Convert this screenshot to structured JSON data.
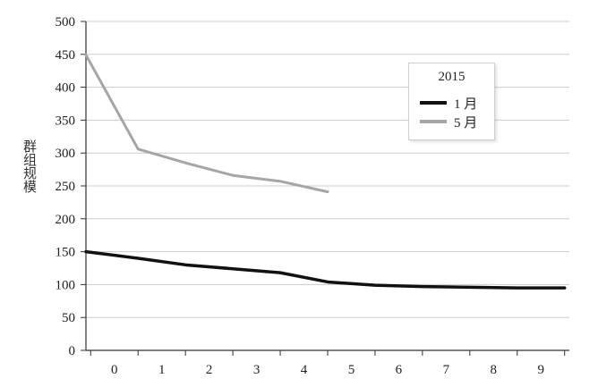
{
  "chart_data": {
    "type": "line",
    "ylabel": "群组规模",
    "xlabel": "",
    "ylim": [
      0,
      500
    ],
    "xlim": [
      -0.6,
      9.6
    ],
    "y_ticks": [
      0,
      50,
      100,
      150,
      200,
      250,
      300,
      350,
      400,
      450,
      500
    ],
    "x_ticks": [
      0,
      1,
      2,
      3,
      4,
      5,
      6,
      7,
      8,
      9
    ],
    "grid": "horizontal",
    "legend": {
      "title": "2015",
      "placement": "top-right"
    },
    "series": [
      {
        "name": "1 月",
        "color": "#111111",
        "x": [
          -0.6,
          0.5,
          1.5,
          2.5,
          3.5,
          4.5,
          5.5,
          6.5,
          7.5,
          8.5,
          9.5
        ],
        "y": [
          150,
          140,
          130,
          124,
          118,
          104,
          99,
          97,
          96,
          95,
          95
        ]
      },
      {
        "name": "5 月",
        "color": "#a6a6a6",
        "x": [
          -0.6,
          0.5,
          1.5,
          2.5,
          3.5,
          4.5
        ],
        "y": [
          449,
          306,
          285,
          266,
          257,
          241
        ]
      }
    ]
  }
}
